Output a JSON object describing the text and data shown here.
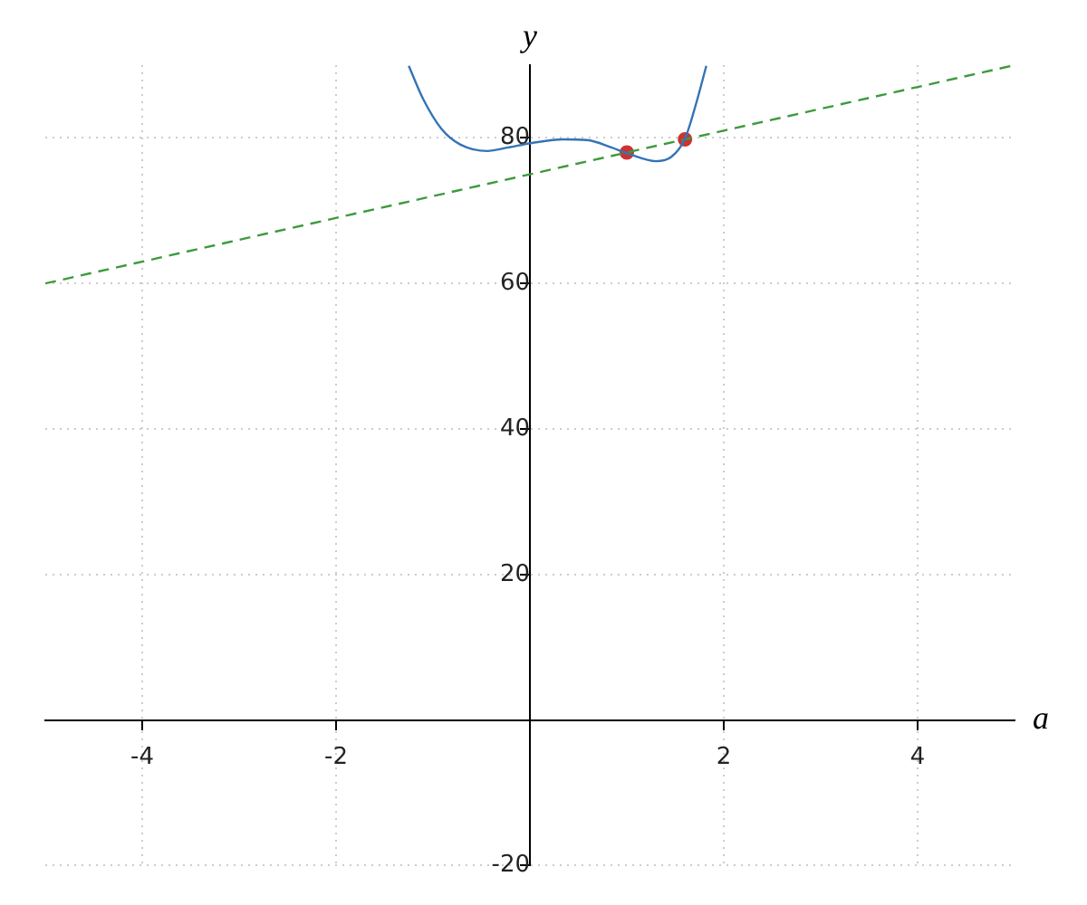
{
  "chart_data": {
    "type": "line",
    "xlabel": "a",
    "ylabel": "y",
    "xlim": [
      -5,
      5
    ],
    "ylim": [
      -20,
      90
    ],
    "xticks": [
      -4,
      -2,
      2,
      4
    ],
    "yticks": [
      -20,
      20,
      40,
      60,
      80
    ],
    "grid": true,
    "legend": false,
    "series": [
      {
        "color": "#3474b5",
        "line_style": "solid",
        "marker": "none",
        "x": [
          -1.25,
          -1.1,
          -0.91,
          -0.72,
          -0.44,
          -0.22,
          0.02,
          0.34,
          0.59,
          0.84,
          1.02,
          1.3,
          1.46,
          1.6,
          1.71,
          1.82
        ],
        "values": [
          89.9,
          85.3,
          81.2,
          79.1,
          78.2,
          78.7,
          79.3,
          79.8,
          79.7,
          78.7,
          77.8,
          76.8,
          77.4,
          79.9,
          84.5,
          89.9
        ]
      },
      {
        "color": "#3d9a3d",
        "line_style": "dashed",
        "marker": "none",
        "x": [
          -5,
          5
        ],
        "values": [
          60,
          90
        ]
      },
      {
        "type": "scatter",
        "color": "#cc3333",
        "marker": "circle",
        "x": [
          1,
          1.6
        ],
        "values": [
          78,
          79.8
        ]
      }
    ]
  }
}
